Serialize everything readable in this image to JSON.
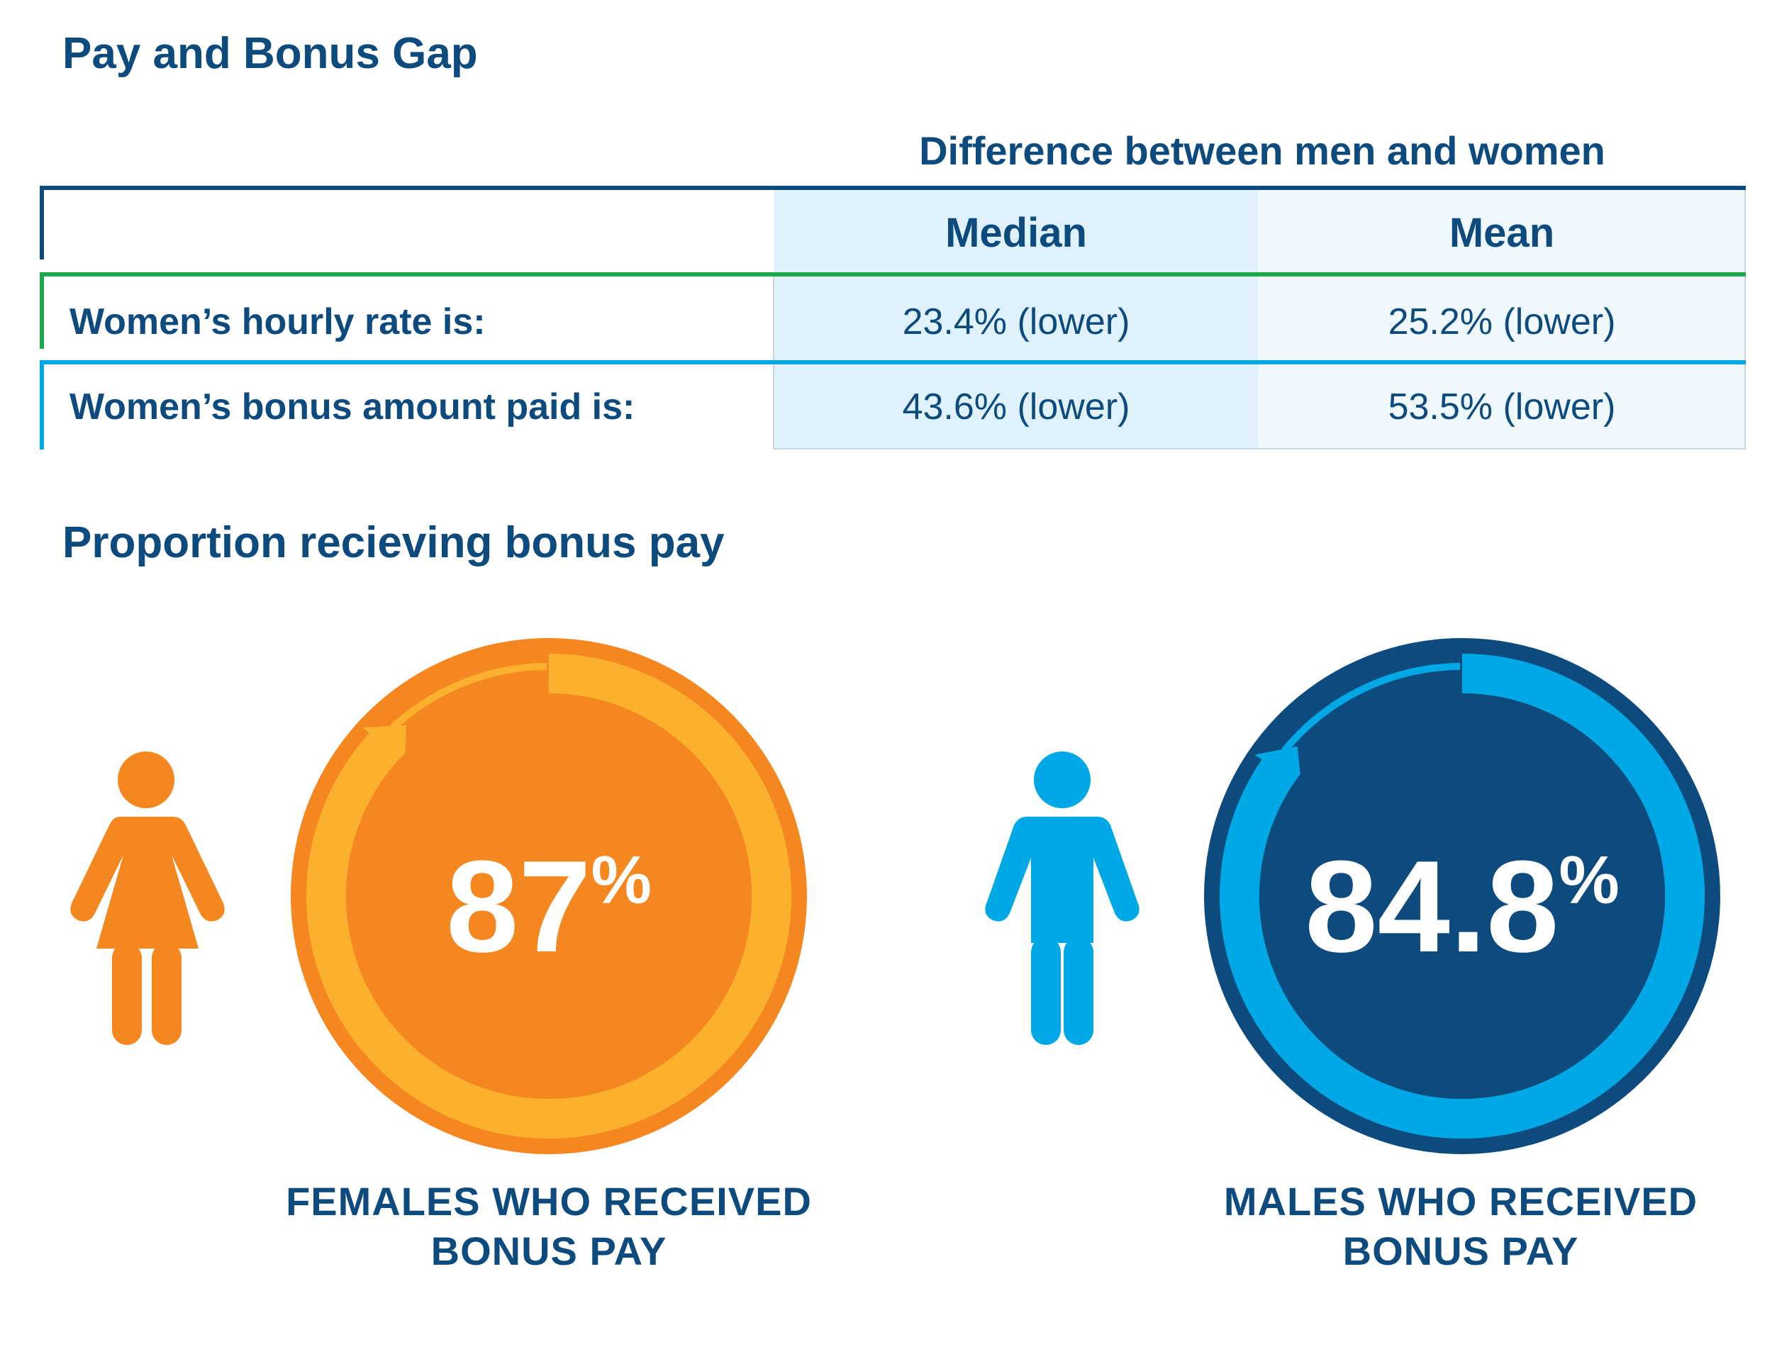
{
  "title": "Pay and Bonus Gap",
  "table": {
    "group_header": "Difference between men and women",
    "columns": [
      "Median",
      "Mean"
    ],
    "rows": [
      {
        "label": "Women’s hourly rate is:",
        "median": "23.4% (lower)",
        "mean": "25.2% (lower)"
      },
      {
        "label": "Women’s bonus amount paid is:",
        "median": "43.6% (lower)",
        "mean": "53.5% (lower)"
      }
    ]
  },
  "section2_title": "Proportion recieving bonus pay",
  "chart_data": [
    {
      "type": "pie",
      "series": [
        {
          "values": [
            87,
            13
          ]
        }
      ],
      "value_label": "87",
      "value_suffix": "%",
      "caption_line1": "FEMALES WHO RECEIVED",
      "caption_line2": "BONUS PAY",
      "colors": {
        "outer": "#f58720",
        "ring": "#fbb02e",
        "inner": "#f58720"
      },
      "icon": "female-figure-icon"
    },
    {
      "type": "pie",
      "series": [
        {
          "values": [
            84.8,
            15.2
          ]
        }
      ],
      "value_label": "84.8",
      "value_suffix": "%",
      "caption_line1": "MALES WHO RECEIVED",
      "caption_line2": "BONUS PAY",
      "colors": {
        "outer": "#0d4a7d",
        "ring": "#00a9e6",
        "inner": "#0d4a7d"
      },
      "icon": "male-figure-icon"
    }
  ],
  "colors": {
    "navy": "#0d4a7d",
    "green": "#1ea849",
    "cyan": "#00a9e6",
    "median_bg": "#dff2fc",
    "mean_bg": "#eef8fd"
  }
}
